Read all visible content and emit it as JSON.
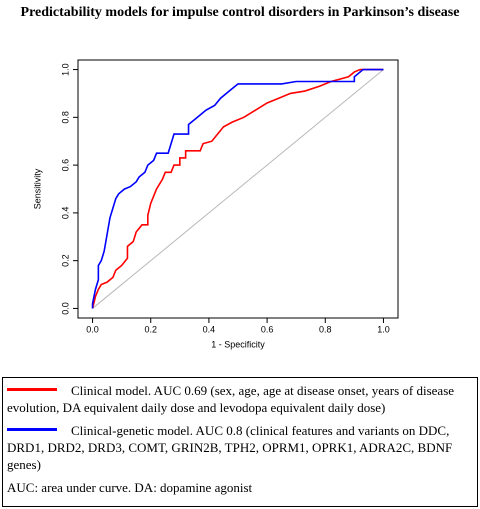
{
  "chart_data": {
    "type": "line",
    "title": "Predictability models for impulse control disorders in Parkinson’s disease",
    "x_label": "1 - Specificity",
    "y_label": "Sensitivity",
    "xlim": [
      -0.05,
      1.05
    ],
    "ylim": [
      -0.04,
      1.04
    ],
    "xticks": [
      {
        "value": 0,
        "label": "0.0"
      },
      0.2,
      0.4,
      0.6,
      0.8,
      {
        "value": 1,
        "label": "1.0"
      }
    ],
    "yticks": [
      {
        "value": 0,
        "label": "0.0"
      },
      0.2,
      0.4,
      0.6,
      0.8,
      {
        "value": 1,
        "label": "1.0"
      }
    ],
    "series": [
      {
        "name": "Clinical model. AUC 0.69 (sex, age, age at disease onset, years of disease evolution, DA equivalent daily dose and levodopa equivalent daily dose)",
        "color": "#ff0000",
        "x": [
          0,
          0.01,
          0.02,
          0.03,
          0.05,
          0.07,
          0.08,
          0.1,
          0.12,
          0.12,
          0.14,
          0.15,
          0.17,
          0.19,
          0.19,
          0.2,
          0.21,
          0.22,
          0.24,
          0.25,
          0.27,
          0.28,
          0.3,
          0.3,
          0.32,
          0.32,
          0.37,
          0.38,
          0.41,
          0.43,
          0.45,
          0.48,
          0.52,
          0.56,
          0.6,
          0.64,
          0.68,
          0.73,
          0.78,
          0.82,
          0.88,
          0.9,
          0.92,
          1
        ],
        "values": [
          0,
          0.05,
          0.08,
          0.1,
          0.11,
          0.13,
          0.16,
          0.18,
          0.21,
          0.26,
          0.28,
          0.32,
          0.35,
          0.35,
          0.39,
          0.44,
          0.47,
          0.5,
          0.54,
          0.57,
          0.57,
          0.6,
          0.6,
          0.63,
          0.63,
          0.66,
          0.66,
          0.69,
          0.7,
          0.73,
          0.76,
          0.78,
          0.8,
          0.83,
          0.86,
          0.88,
          0.9,
          0.91,
          0.93,
          0.95,
          0.97,
          0.99,
          1,
          1
        ]
      },
      {
        "name": "Clinical-genetic model. AUC 0.8 (clinical features and variants on DDC, DRD1, DRD2, DRD3, COMT, GRIN2B, TPH2, OPRM1, OPRK1, ADRA2C, BDNF genes)",
        "color": "#0000ff",
        "x": [
          0,
          0,
          0.01,
          0.02,
          0.02,
          0.03,
          0.04,
          0.05,
          0.06,
          0.07,
          0.08,
          0.09,
          0.11,
          0.13,
          0.15,
          0.16,
          0.18,
          0.19,
          0.21,
          0.22,
          0.26,
          0.27,
          0.28,
          0.33,
          0.33,
          0.36,
          0.39,
          0.42,
          0.44,
          0.47,
          0.5,
          0.56,
          0.65,
          0.7,
          0.9,
          0.9,
          0.93,
          1
        ],
        "values": [
          0,
          0.02,
          0.08,
          0.12,
          0.18,
          0.2,
          0.24,
          0.31,
          0.38,
          0.42,
          0.46,
          0.48,
          0.5,
          0.51,
          0.53,
          0.55,
          0.57,
          0.6,
          0.62,
          0.65,
          0.65,
          0.69,
          0.73,
          0.73,
          0.77,
          0.8,
          0.83,
          0.85,
          0.88,
          0.91,
          0.94,
          0.94,
          0.94,
          0.95,
          0.95,
          0.97,
          1,
          1
        ]
      }
    ],
    "footnote": "AUC: area under curve. DA: dopamine agonist"
  }
}
